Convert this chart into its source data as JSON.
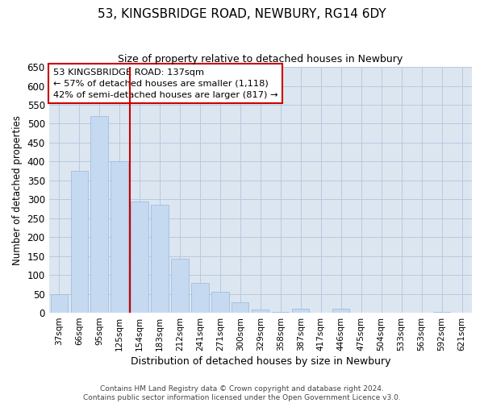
{
  "title": "53, KINGSBRIDGE ROAD, NEWBURY, RG14 6DY",
  "subtitle": "Size of property relative to detached houses in Newbury",
  "xlabel": "Distribution of detached houses by size in Newbury",
  "ylabel": "Number of detached properties",
  "categories": [
    "37sqm",
    "66sqm",
    "95sqm",
    "125sqm",
    "154sqm",
    "183sqm",
    "212sqm",
    "241sqm",
    "271sqm",
    "300sqm",
    "329sqm",
    "358sqm",
    "387sqm",
    "417sqm",
    "446sqm",
    "475sqm",
    "504sqm",
    "533sqm",
    "563sqm",
    "592sqm",
    "621sqm"
  ],
  "values": [
    50,
    375,
    520,
    400,
    295,
    285,
    143,
    80,
    55,
    28,
    8,
    3,
    10,
    0,
    10,
    0,
    0,
    0,
    0,
    2,
    0
  ],
  "bar_color": "#c5d9f1",
  "bar_edge_color": "#9ab7d9",
  "grid_color": "#b8c9de",
  "background_color": "#dce6f1",
  "annotation_text_line1": "53 KINGSBRIDGE ROAD: 137sqm",
  "annotation_text_line2": "← 57% of detached houses are smaller (1,118)",
  "annotation_text_line3": "42% of semi-detached houses are larger (817) →",
  "annotation_box_color": "#ffffff",
  "annotation_box_edge_color": "#cc0000",
  "vline_color": "#cc0000",
  "vline_x": 3.5,
  "ylim": [
    0,
    650
  ],
  "yticks": [
    0,
    50,
    100,
    150,
    200,
    250,
    300,
    350,
    400,
    450,
    500,
    550,
    600,
    650
  ],
  "footer_line1": "Contains HM Land Registry data © Crown copyright and database right 2024.",
  "footer_line2": "Contains public sector information licensed under the Open Government Licence v3.0."
}
